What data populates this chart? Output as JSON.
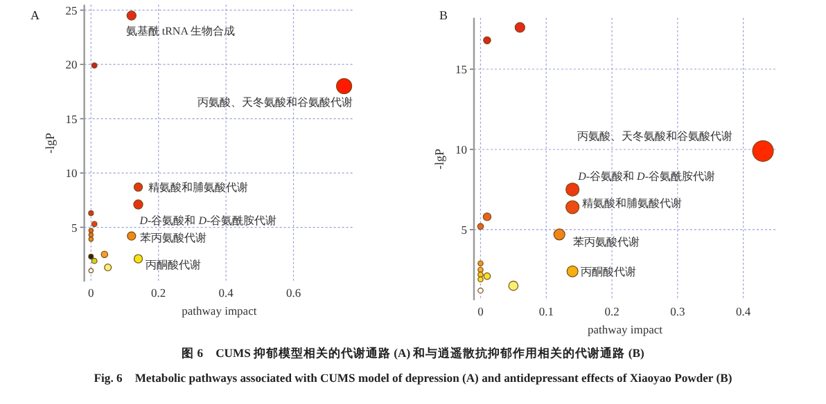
{
  "chart_data": [
    {
      "type": "bubble",
      "title": "A",
      "xlabel": "pathway impact",
      "ylabel": "-lgP",
      "xlim": [
        -0.02,
        0.78
      ],
      "ylim": [
        0,
        25.5
      ],
      "xticks": [
        0,
        0.2,
        0.4,
        0.6
      ],
      "yticks": [
        5,
        10,
        15,
        20,
        25
      ],
      "grid": true,
      "x": [
        0.12,
        0.01,
        0.75,
        0.14,
        0.14,
        0,
        0.01,
        0,
        0,
        0,
        0.12,
        0.04,
        0,
        0.01,
        0.14,
        0.05,
        0
      ],
      "values": [
        24.5,
        19.9,
        18,
        8.7,
        7.1,
        6.3,
        5.3,
        4.7,
        4.3,
        3.9,
        4.2,
        2.5,
        2.3,
        1.9,
        2.1,
        1.3,
        1
      ],
      "sizes": [
        0.36,
        0.12,
        1,
        0.3,
        0.36,
        0.1,
        0.12,
        0.08,
        0.08,
        0.08,
        0.3,
        0.18,
        0.1,
        0.12,
        0.3,
        0.2,
        0.08
      ],
      "colors": [
        "#e52a1a",
        "#c8261a",
        "#ff1a00",
        "#e33a14",
        "#e8320f",
        "#d8361a",
        "#e04418",
        "#e66a1e",
        "#ea7a20",
        "#ec8a22",
        "#ef8a14",
        "#f0a030",
        "#222222",
        "#c8d820",
        "#f2e416",
        "#f4f07a",
        "#ffffff"
      ],
      "annotations": [
        {
          "text": "氨基酰 tRNA 生物合成",
          "x": 0.12,
          "y": 24.5
        },
        {
          "text": "丙氨酸、天冬氨酸和谷氨酸代谢",
          "x": 0.75,
          "y": 18
        },
        {
          "text": "精氨酸和脯氨酸代谢",
          "x": 0.14,
          "y": 8.7
        },
        {
          "text": "*D*-谷氨酸和 *D*-谷氨酰胺代谢",
          "x": 0.14,
          "y": 7.1
        },
        {
          "text": "苯丙氨酸代谢",
          "x": 0.12,
          "y": 4.2
        },
        {
          "text": "丙酮酸代谢",
          "x": 0.14,
          "y": 2.1
        },
        "图 6　CUMS 抑郁模型相关的代谢通路 (A) 和与逍遥散抗抑郁作用相关的代谢通路 (B)",
        "Fig. 6　Metabolic pathways associated with CUMS model of depression (A) and antidepressant effects of Xiaoyao Powder (B)"
      ]
    },
    {
      "type": "bubble",
      "title": "B",
      "xlabel": "pathway impact",
      "ylabel": "-lgP",
      "xlim": [
        -0.01,
        0.45
      ],
      "ylim": [
        0.6,
        18.2
      ],
      "xticks": [
        0,
        0.1,
        0.2,
        0.3,
        0.4
      ],
      "yticks": [
        5,
        10,
        15
      ],
      "grid": true,
      "x": [
        0.06,
        0.01,
        0.43,
        0.14,
        0.14,
        0.01,
        0,
        0.12,
        0.14,
        0,
        0,
        0,
        0,
        0.01,
        0.05,
        0
      ],
      "values": [
        17.6,
        16.8,
        9.9,
        7.5,
        6.4,
        5.8,
        5.2,
        4.7,
        2.4,
        2.9,
        2.5,
        2.2,
        1.9,
        2.1,
        1.5,
        1.2
      ],
      "sizes": [
        0.22,
        0.12,
        1,
        0.4,
        0.4,
        0.14,
        0.08,
        0.28,
        0.28,
        0.06,
        0.06,
        0.06,
        0.06,
        0.1,
        0.2,
        0.06
      ],
      "colors": [
        "#e52a1a",
        "#d8281a",
        "#ff2a00",
        "#ee3a10",
        "#ee4a14",
        "#e8641e",
        "#e8641e",
        "#f08418",
        "#f4b010",
        "#ec9a24",
        "#f0b030",
        "#f2c828",
        "#f4e020",
        "#f4e030",
        "#f6f070",
        "#ffffff"
      ],
      "annotations": [
        {
          "text": "丙氨酸、天冬氨酸和谷氨酸代谢",
          "x": 0.43,
          "y": 9.9
        },
        {
          "text": "*D*-谷氨酸和 *D*-谷氨酰胺代谢",
          "x": 0.14,
          "y": 7.5
        },
        {
          "text": "精氨酸和脯氨酸代谢",
          "x": 0.14,
          "y": 6.4
        },
        {
          "text": "苯丙氨酸代谢",
          "x": 0.12,
          "y": 4.7
        },
        {
          "text": "丙酮酸代谢",
          "x": 0.14,
          "y": 2.4
        }
      ]
    }
  ]
}
